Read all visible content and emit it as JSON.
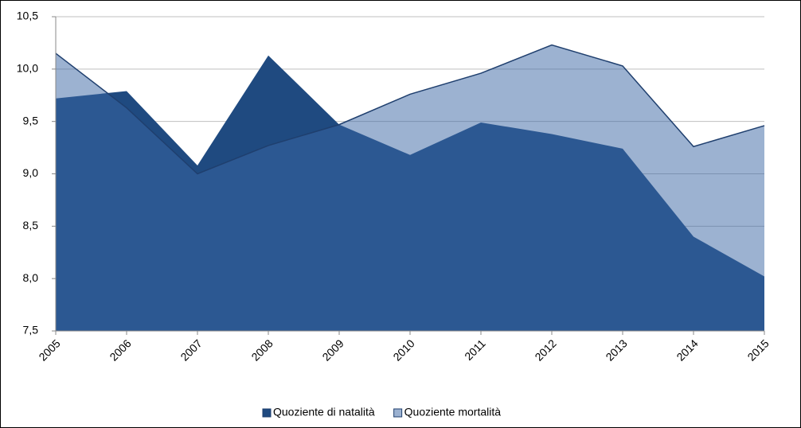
{
  "chart_data": {
    "type": "area",
    "categories": [
      "2005",
      "2006",
      "2007",
      "2008",
      "2009",
      "2010",
      "2011",
      "2012",
      "2013",
      "2014",
      "2015"
    ],
    "series": [
      {
        "name": "Quoziente di natalità",
        "color": "#1f4a80",
        "values": [
          9.72,
          9.79,
          9.08,
          10.13,
          9.47,
          9.18,
          9.49,
          9.38,
          9.24,
          8.4,
          8.02
        ]
      },
      {
        "name": "Quoziente mortalità",
        "color": "#3a66a4",
        "values": [
          10.15,
          9.63,
          9.0,
          9.27,
          9.47,
          9.76,
          9.96,
          10.23,
          10.03,
          9.26,
          9.46
        ]
      }
    ],
    "ylim": [
      7.5,
      10.5
    ],
    "yticks": [
      {
        "value": 7.5,
        "label": "7,5"
      },
      {
        "value": 8.0,
        "label": "8,0"
      },
      {
        "value": 8.5,
        "label": "8,5"
      },
      {
        "value": 9.0,
        "label": "9,0"
      },
      {
        "value": 9.5,
        "label": "9,5"
      },
      {
        "value": 10.0,
        "label": "10,0"
      },
      {
        "value": 10.5,
        "label": "10,5"
      }
    ],
    "grid": true,
    "legend": "bottom"
  }
}
